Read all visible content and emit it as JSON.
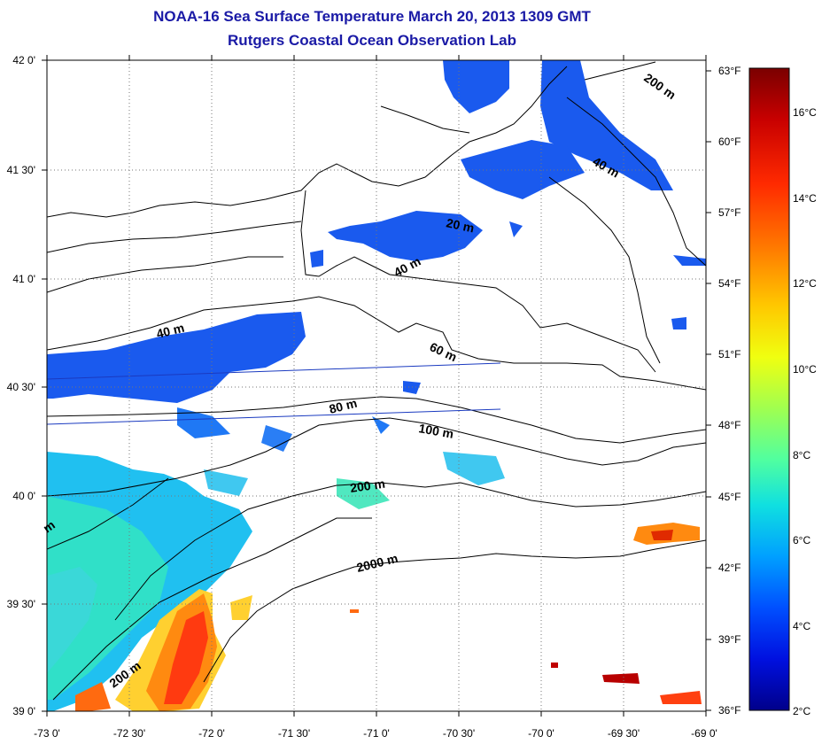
{
  "title": "NOAA-16 Sea Surface Temperature March 20, 2013 1309 GMT",
  "subtitle": "Rutgers Coastal Ocean Observation Lab",
  "map": {
    "lon_range": [
      -73,
      -69
    ],
    "lat_range": [
      39,
      42
    ],
    "lon_ticks": [
      "-73 0'",
      "-72 30'",
      "-72 0'",
      "-71 30'",
      "-71 0'",
      "-70 30'",
      "-70 0'",
      "-69 30'",
      "-69 0'"
    ],
    "lat_ticks": [
      "42 0'",
      "41 30'",
      "41 0'",
      "40 30'",
      "40 0'",
      "39 30'",
      "39 0'"
    ],
    "fahrenheit_ticks": [
      "63°F",
      "60°F",
      "57°F",
      "54°F",
      "51°F",
      "48°F",
      "45°F",
      "42°F",
      "39°F",
      "36°F"
    ],
    "depth_labels": [
      "200 m",
      "40 m",
      "20 m",
      "40 m",
      "40 m",
      "60 m",
      "80 m",
      "100 m",
      "200 m",
      "2000 m",
      "200 m",
      "m"
    ]
  },
  "colorbar": {
    "celsius_ticks": [
      "16°C",
      "14°C",
      "12°C",
      "10°C",
      "8°C",
      "6°C",
      "4°C",
      "2°C"
    ],
    "colors": [
      "#7a0000",
      "#c80000",
      "#ff2a00",
      "#ff7a00",
      "#ffc800",
      "#f0ff10",
      "#a0ff50",
      "#50ffa0",
      "#10e0e0",
      "#00a0ff",
      "#0050ff",
      "#0010e0",
      "#00008a"
    ]
  }
}
